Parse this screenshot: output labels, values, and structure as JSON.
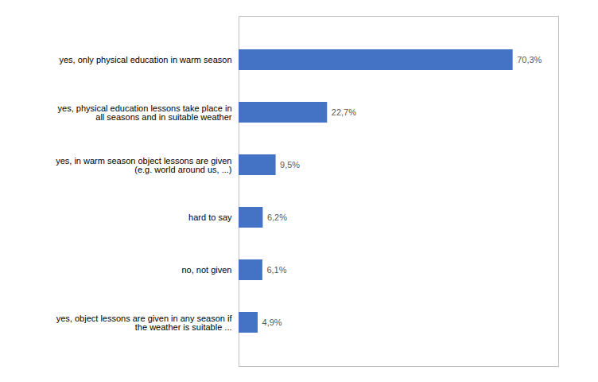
{
  "chart_data": {
    "type": "bar",
    "orientation": "horizontal",
    "categories": [
      "yes, object lessons are given in any season if\nthe weather is suitable ...",
      "no, not given",
      "hard to say",
      "yes, in warm season object lessons are given\n(e.g. world around us, ...)",
      "yes, physical education lessons take place in\nall seasons and in suitable weather",
      "yes, only physical education in warm season"
    ],
    "values": [
      4.9,
      6.1,
      6.2,
      9.5,
      22.7,
      70.3
    ],
    "value_labels": [
      "4,9%",
      "6,1%",
      "6,2%",
      "9,5%",
      "22,7%",
      "70,3%"
    ],
    "data_labels": true,
    "color": "#4472C4",
    "xlim": [
      0,
      82
    ],
    "tick_labels": "y",
    "grid": false
  }
}
